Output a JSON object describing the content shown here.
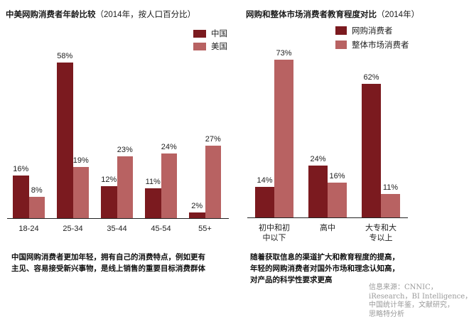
{
  "colors": {
    "primary": "#7b1a1f",
    "secondary": "#b86262"
  },
  "left": {
    "title": "中美网购消费者年龄比较",
    "title_suffix": "（2014年，按人口百分比）",
    "legend": [
      "中国",
      "美国"
    ],
    "note_lines": [
      "中国网购消费者更加年轻，拥有自己的消费特点，例如更有",
      "主见、容易接受新兴事物，是线上销售的重要目标消费群体"
    ]
  },
  "right": {
    "title": "网购和整体市场消费者教育程度对比",
    "title_suffix": "（2014年）",
    "legend": [
      "网购消费者",
      "整体市场消费者"
    ],
    "note_lines": [
      "随着获取信息的渠道扩大和教育程度的提高，",
      "年轻的网购消费者对国外市场和理念认知高，",
      "对产品的科学性要求更高"
    ]
  },
  "source_lines": [
    "信息来源：CNNIC，",
    "iResearch，BI Intelligence，",
    "中国统计年鉴，文献研究，",
    "思略特分析"
  ],
  "chart_data": [
    {
      "type": "bar",
      "title": "中美网购消费者年龄比较（2014年，按人口百分比）",
      "xlabel": "",
      "ylabel": "",
      "categories": [
        "18-24",
        "25-34",
        "35-44",
        "45-54",
        "55+"
      ],
      "series": [
        {
          "name": "中国",
          "values": [
            16,
            58,
            12,
            11,
            2
          ]
        },
        {
          "name": "美国",
          "values": [
            8,
            19,
            23,
            24,
            27
          ]
        }
      ],
      "value_labels": [
        [
          "16%",
          "58%",
          "12%",
          "11%",
          "2%"
        ],
        [
          "8%",
          "19%",
          "23%",
          "24%",
          "27%"
        ]
      ],
      "ylim": [
        0,
        60
      ],
      "grid": false,
      "legend_position": "top-right",
      "unit": "%"
    },
    {
      "type": "bar",
      "title": "网购和整体市场消费者教育程度对比（2014年）",
      "xlabel": "",
      "ylabel": "",
      "categories": [
        "初中和初中以下",
        "高中",
        "大专和大专以上"
      ],
      "category_lines": [
        [
          "初中和初",
          "中以下"
        ],
        [
          "高中"
        ],
        [
          "大专和大",
          "专以上"
        ]
      ],
      "series": [
        {
          "name": "网购消费者",
          "values": [
            14,
            24,
            62
          ]
        },
        {
          "name": "整体市场消费者",
          "values": [
            73,
            16,
            11
          ]
        }
      ],
      "value_labels": [
        [
          "14%",
          "24%",
          "62%"
        ],
        [
          "73%",
          "16%",
          "11%"
        ]
      ],
      "ylim": [
        0,
        75
      ],
      "grid": false,
      "legend_position": "top-right",
      "unit": "%"
    }
  ]
}
